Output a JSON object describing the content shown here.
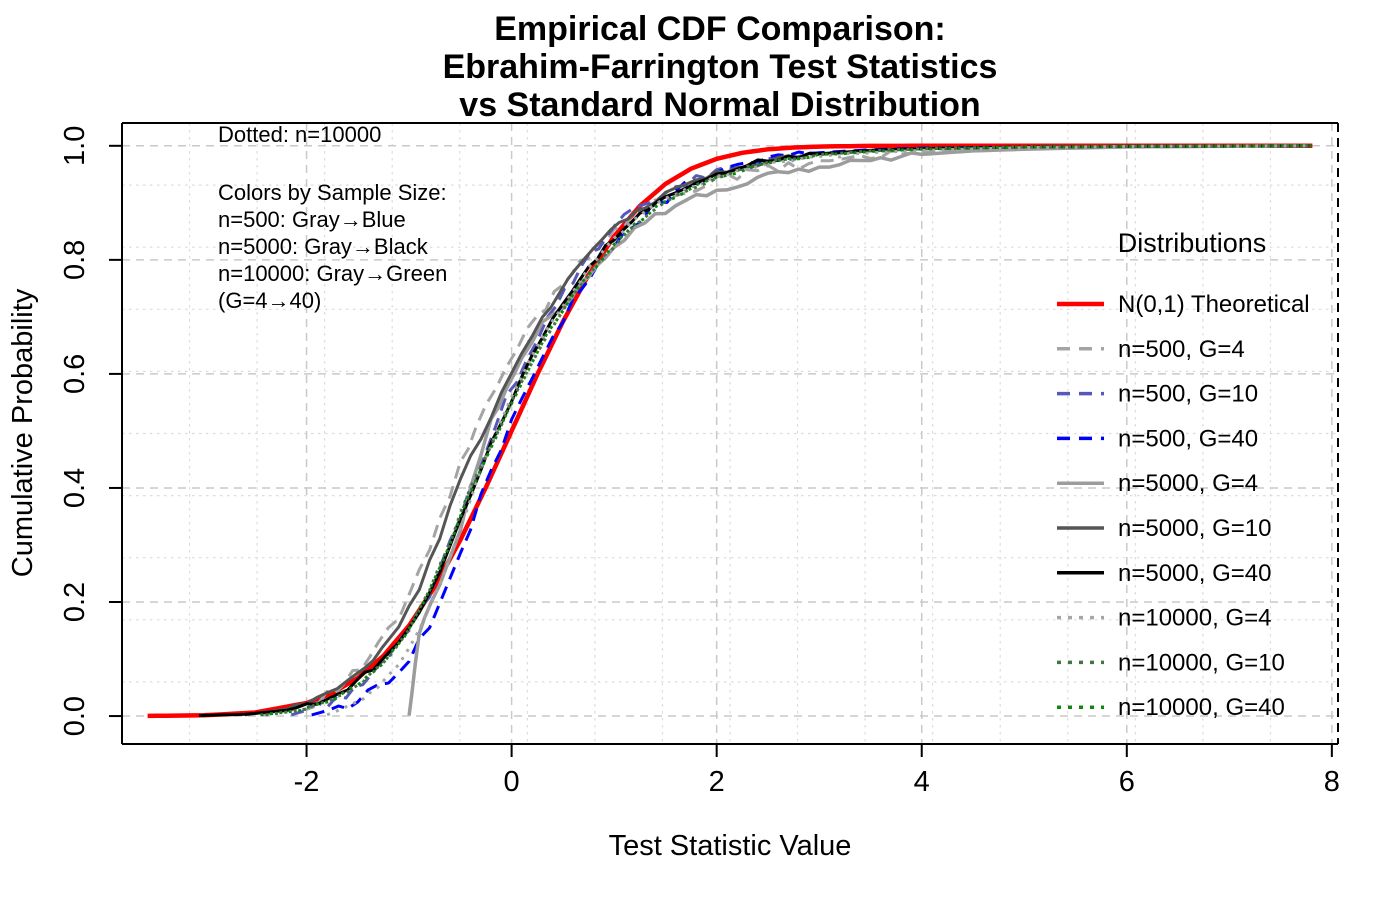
{
  "title": {
    "lines": [
      "Empirical CDF Comparison:",
      "Ebrahim-Farrington Test Statistics",
      "vs Standard Normal Distribution"
    ]
  },
  "annotations": {
    "dotted_note": "Dotted: n=10000",
    "color_note_lines": [
      "Colors by Sample Size:",
      "n=500: Gray→Blue",
      "n=5000: Gray→Black",
      "n=10000: Gray→Green",
      "(G=4→40)"
    ]
  },
  "legend": {
    "title": "Distributions"
  },
  "chart_data": {
    "type": "line",
    "subtype": "ecdf-comparison",
    "title": "Empirical CDF Comparison: Ebrahim-Farrington Test Statistics vs Standard Normal Distribution",
    "xlabel": "Test Statistic Value",
    "ylabel": "Cumulative Probability",
    "xlim": [
      -3.8,
      8.06
    ],
    "ylim": [
      -0.049,
      1.04
    ],
    "x_ticks": [
      -2,
      0,
      2,
      4,
      6,
      8
    ],
    "x_tick_labels": [
      "-2",
      "0",
      "2",
      "4",
      "6",
      "8"
    ],
    "y_ticks": [
      0.0,
      0.2,
      0.4,
      0.6,
      0.8,
      1.0
    ],
    "y_tick_labels": [
      "0.0",
      "0.2",
      "0.4",
      "0.6",
      "0.8",
      "1.0"
    ],
    "grid": {
      "major_color": "#C9C9C9",
      "minor_color": "#DCDCDC",
      "minor_x_divisions": 18,
      "minor_y_divisions": 10,
      "legend_position": "right"
    },
    "series": [
      {
        "name": "N(0,1) Theoretical",
        "color": "#FF0000",
        "style": "solid",
        "width": 4.5,
        "jitter": 0,
        "points": [
          [
            -3.55,
            0.0002
          ],
          [
            -3.0,
            0.0013
          ],
          [
            -2.5,
            0.0062
          ],
          [
            -2.0,
            0.0228
          ],
          [
            -1.75,
            0.0401
          ],
          [
            -1.5,
            0.0668
          ],
          [
            -1.25,
            0.1056
          ],
          [
            -1.0,
            0.1587
          ],
          [
            -0.75,
            0.2266
          ],
          [
            -0.5,
            0.3085
          ],
          [
            -0.25,
            0.4013
          ],
          [
            0.0,
            0.5
          ],
          [
            0.25,
            0.5987
          ],
          [
            0.5,
            0.6915
          ],
          [
            0.75,
            0.7734
          ],
          [
            1.0,
            0.8413
          ],
          [
            1.25,
            0.8944
          ],
          [
            1.5,
            0.9332
          ],
          [
            1.75,
            0.9599
          ],
          [
            2.0,
            0.9772
          ],
          [
            2.25,
            0.9878
          ],
          [
            2.5,
            0.9938
          ],
          [
            2.75,
            0.997
          ],
          [
            3.0,
            0.9987
          ],
          [
            3.5,
            0.9998
          ],
          [
            4.0,
            1.0
          ],
          [
            7.81,
            1.0
          ]
        ]
      },
      {
        "name": "n=500, G=4",
        "color": "#A4A4A4",
        "style": "dashed",
        "width": 3,
        "jitter": 0.01,
        "points": [
          [
            -2.45,
            0.002
          ],
          [
            -2.1,
            0.012
          ],
          [
            -1.8,
            0.035
          ],
          [
            -1.55,
            0.07
          ],
          [
            -1.3,
            0.12
          ],
          [
            -1.1,
            0.175
          ],
          [
            -0.9,
            0.25
          ],
          [
            -0.7,
            0.34
          ],
          [
            -0.5,
            0.44
          ],
          [
            -0.35,
            0.5
          ],
          [
            -0.15,
            0.575
          ],
          [
            0.05,
            0.645
          ],
          [
            0.25,
            0.7
          ],
          [
            0.5,
            0.762
          ],
          [
            0.75,
            0.812
          ],
          [
            1.0,
            0.852
          ],
          [
            1.3,
            0.888
          ],
          [
            1.6,
            0.916
          ],
          [
            2.0,
            0.938
          ],
          [
            2.5,
            0.958
          ],
          [
            3.0,
            0.972
          ],
          [
            3.5,
            0.982
          ],
          [
            4.0,
            0.988
          ],
          [
            4.5,
            0.993
          ],
          [
            5.0,
            0.995
          ],
          [
            6.0,
            0.998
          ],
          [
            7.8,
            1.0
          ]
        ]
      },
      {
        "name": "n=500, G=10",
        "color": "#5858BA",
        "style": "dashed",
        "width": 3,
        "jitter": 0.009,
        "points": [
          [
            -2.15,
            0.002
          ],
          [
            -2.0,
            0.01
          ],
          [
            -1.7,
            0.03
          ],
          [
            -1.45,
            0.06
          ],
          [
            -1.2,
            0.1
          ],
          [
            -1.0,
            0.15
          ],
          [
            -0.8,
            0.215
          ],
          [
            -0.6,
            0.3
          ],
          [
            -0.4,
            0.4
          ],
          [
            -0.25,
            0.47
          ],
          [
            -0.05,
            0.555
          ],
          [
            0.15,
            0.63
          ],
          [
            0.35,
            0.695
          ],
          [
            0.6,
            0.765
          ],
          [
            0.85,
            0.825
          ],
          [
            1.1,
            0.872
          ],
          [
            1.4,
            0.908
          ],
          [
            1.7,
            0.933
          ],
          [
            2.0,
            0.953
          ],
          [
            2.5,
            0.976
          ],
          [
            3.0,
            0.987
          ],
          [
            3.5,
            0.992
          ],
          [
            4.0,
            0.995
          ],
          [
            5.0,
            0.998
          ],
          [
            6.0,
            0.999
          ],
          [
            7.8,
            1.0
          ]
        ]
      },
      {
        "name": "n=500, G=40",
        "color": "#0000FF",
        "style": "dashed",
        "width": 3,
        "jitter": 0.009,
        "points": [
          [
            -1.95,
            0.002
          ],
          [
            -1.6,
            0.02
          ],
          [
            -1.3,
            0.05
          ],
          [
            -1.0,
            0.1
          ],
          [
            -0.8,
            0.16
          ],
          [
            -0.6,
            0.24
          ],
          [
            -0.4,
            0.33
          ],
          [
            -0.2,
            0.43
          ],
          [
            0.0,
            0.515
          ],
          [
            0.2,
            0.6
          ],
          [
            0.4,
            0.665
          ],
          [
            0.6,
            0.725
          ],
          [
            0.85,
            0.79
          ],
          [
            1.1,
            0.845
          ],
          [
            1.35,
            0.885
          ],
          [
            1.6,
            0.92
          ],
          [
            2.0,
            0.958
          ],
          [
            2.5,
            0.978
          ],
          [
            3.0,
            0.988
          ],
          [
            3.5,
            0.993
          ],
          [
            4.0,
            0.996
          ],
          [
            5.0,
            0.998
          ],
          [
            6.0,
            0.999
          ],
          [
            7.8,
            1.0
          ]
        ]
      },
      {
        "name": "n=5000, G=4",
        "color": "#9C9C9C",
        "style": "solid",
        "width": 3.5,
        "jitter": 0.006,
        "points": [
          [
            -1.0,
            0.001
          ],
          [
            -0.97,
            0.04
          ],
          [
            -0.94,
            0.09
          ],
          [
            -0.9,
            0.14
          ],
          [
            -0.85,
            0.175
          ],
          [
            -0.78,
            0.205
          ],
          [
            -0.7,
            0.235
          ],
          [
            -0.6,
            0.28
          ],
          [
            -0.5,
            0.33
          ],
          [
            -0.4,
            0.4
          ],
          [
            -0.3,
            0.46
          ],
          [
            -0.2,
            0.515
          ],
          [
            -0.05,
            0.575
          ],
          [
            0.1,
            0.625
          ],
          [
            0.3,
            0.685
          ],
          [
            0.5,
            0.72
          ],
          [
            0.75,
            0.775
          ],
          [
            1.0,
            0.825
          ],
          [
            1.3,
            0.868
          ],
          [
            1.6,
            0.896
          ],
          [
            2.0,
            0.922
          ],
          [
            2.5,
            0.946
          ],
          [
            3.0,
            0.963
          ],
          [
            3.5,
            0.976
          ],
          [
            4.0,
            0.985
          ],
          [
            4.5,
            0.991
          ],
          [
            5.0,
            0.994
          ],
          [
            6.0,
            0.998
          ],
          [
            7.8,
            1.0
          ]
        ]
      },
      {
        "name": "n=5000, G=10",
        "color": "#555555",
        "style": "solid",
        "width": 3,
        "jitter": 0.005,
        "points": [
          [
            -2.6,
            0.002
          ],
          [
            -2.2,
            0.012
          ],
          [
            -1.9,
            0.03
          ],
          [
            -1.6,
            0.06
          ],
          [
            -1.35,
            0.1
          ],
          [
            -1.1,
            0.155
          ],
          [
            -0.9,
            0.225
          ],
          [
            -0.7,
            0.315
          ],
          [
            -0.5,
            0.415
          ],
          [
            -0.3,
            0.49
          ],
          [
            -0.1,
            0.565
          ],
          [
            0.1,
            0.635
          ],
          [
            0.3,
            0.7
          ],
          [
            0.55,
            0.765
          ],
          [
            0.8,
            0.82
          ],
          [
            1.05,
            0.862
          ],
          [
            1.3,
            0.895
          ],
          [
            1.6,
            0.925
          ],
          [
            2.0,
            0.952
          ],
          [
            2.5,
            0.974
          ],
          [
            3.0,
            0.985
          ],
          [
            3.5,
            0.991
          ],
          [
            4.0,
            0.995
          ],
          [
            5.0,
            0.998
          ],
          [
            6.0,
            0.999
          ],
          [
            7.8,
            1.0
          ]
        ]
      },
      {
        "name": "n=5000, G=40",
        "color": "#000000",
        "style": "solid",
        "width": 3,
        "jitter": 0.005,
        "points": [
          [
            -3.05,
            0.001
          ],
          [
            -2.6,
            0.003
          ],
          [
            -2.2,
            0.01
          ],
          [
            -1.9,
            0.025
          ],
          [
            -1.6,
            0.05
          ],
          [
            -1.35,
            0.085
          ],
          [
            -1.1,
            0.13
          ],
          [
            -0.9,
            0.185
          ],
          [
            -0.7,
            0.255
          ],
          [
            -0.5,
            0.345
          ],
          [
            -0.3,
            0.435
          ],
          [
            -0.1,
            0.515
          ],
          [
            0.1,
            0.595
          ],
          [
            0.3,
            0.662
          ],
          [
            0.5,
            0.722
          ],
          [
            0.75,
            0.785
          ],
          [
            1.0,
            0.838
          ],
          [
            1.25,
            0.878
          ],
          [
            1.5,
            0.912
          ],
          [
            2.0,
            0.952
          ],
          [
            2.5,
            0.975
          ],
          [
            3.0,
            0.986
          ],
          [
            3.5,
            0.992
          ],
          [
            4.0,
            0.995
          ],
          [
            5.0,
            0.998
          ],
          [
            6.0,
            0.999
          ],
          [
            7.8,
            1.0
          ]
        ]
      },
      {
        "name": "n=10000, G=4",
        "color": "#A6A6A6",
        "style": "dotted",
        "width": 3,
        "jitter": 0.003,
        "points": [
          [
            -1.8,
            0.002
          ],
          [
            -1.55,
            0.02
          ],
          [
            -1.3,
            0.05
          ],
          [
            -1.1,
            0.09
          ],
          [
            -0.9,
            0.15
          ],
          [
            -0.7,
            0.23
          ],
          [
            -0.5,
            0.33
          ],
          [
            -0.3,
            0.435
          ],
          [
            -0.12,
            0.51
          ],
          [
            0.08,
            0.59
          ],
          [
            0.28,
            0.66
          ],
          [
            0.5,
            0.72
          ],
          [
            0.75,
            0.785
          ],
          [
            1.0,
            0.838
          ],
          [
            1.25,
            0.878
          ],
          [
            1.55,
            0.912
          ],
          [
            2.0,
            0.945
          ],
          [
            2.5,
            0.968
          ],
          [
            3.0,
            0.98
          ],
          [
            3.5,
            0.988
          ],
          [
            4.0,
            0.992
          ],
          [
            5.0,
            0.997
          ],
          [
            6.0,
            0.999
          ],
          [
            7.8,
            1.0
          ]
        ]
      },
      {
        "name": "n=10000, G=10",
        "color": "#457545",
        "style": "dotted",
        "width": 3,
        "jitter": 0.003,
        "points": [
          [
            -2.4,
            0.002
          ],
          [
            -2.0,
            0.012
          ],
          [
            -1.7,
            0.032
          ],
          [
            -1.45,
            0.062
          ],
          [
            -1.2,
            0.105
          ],
          [
            -1.0,
            0.152
          ],
          [
            -0.8,
            0.22
          ],
          [
            -0.6,
            0.305
          ],
          [
            -0.4,
            0.4
          ],
          [
            -0.2,
            0.475
          ],
          [
            0.0,
            0.55
          ],
          [
            0.2,
            0.62
          ],
          [
            0.4,
            0.685
          ],
          [
            0.65,
            0.75
          ],
          [
            0.9,
            0.805
          ],
          [
            1.15,
            0.855
          ],
          [
            1.45,
            0.895
          ],
          [
            1.75,
            0.925
          ],
          [
            2.0,
            0.945
          ],
          [
            2.5,
            0.972
          ],
          [
            3.0,
            0.984
          ],
          [
            3.5,
            0.991
          ],
          [
            4.0,
            0.995
          ],
          [
            5.0,
            0.998
          ],
          [
            6.0,
            0.999
          ],
          [
            7.8,
            1.0
          ]
        ]
      },
      {
        "name": "n=10000, G=40",
        "color": "#108810",
        "style": "dotted",
        "width": 3,
        "jitter": 0.003,
        "points": [
          [
            -2.45,
            0.002
          ],
          [
            -2.05,
            0.01
          ],
          [
            -1.75,
            0.028
          ],
          [
            -1.5,
            0.055
          ],
          [
            -1.25,
            0.095
          ],
          [
            -1.05,
            0.14
          ],
          [
            -0.85,
            0.2
          ],
          [
            -0.65,
            0.28
          ],
          [
            -0.45,
            0.375
          ],
          [
            -0.25,
            0.455
          ],
          [
            -0.05,
            0.53
          ],
          [
            0.15,
            0.605
          ],
          [
            0.35,
            0.67
          ],
          [
            0.6,
            0.74
          ],
          [
            0.85,
            0.795
          ],
          [
            1.1,
            0.845
          ],
          [
            1.4,
            0.89
          ],
          [
            1.7,
            0.922
          ],
          [
            2.0,
            0.944
          ],
          [
            2.5,
            0.97
          ],
          [
            3.0,
            0.983
          ],
          [
            3.5,
            0.99
          ],
          [
            4.0,
            0.994
          ],
          [
            5.0,
            0.998
          ],
          [
            6.0,
            0.999
          ],
          [
            7.8,
            1.0
          ]
        ]
      }
    ]
  }
}
